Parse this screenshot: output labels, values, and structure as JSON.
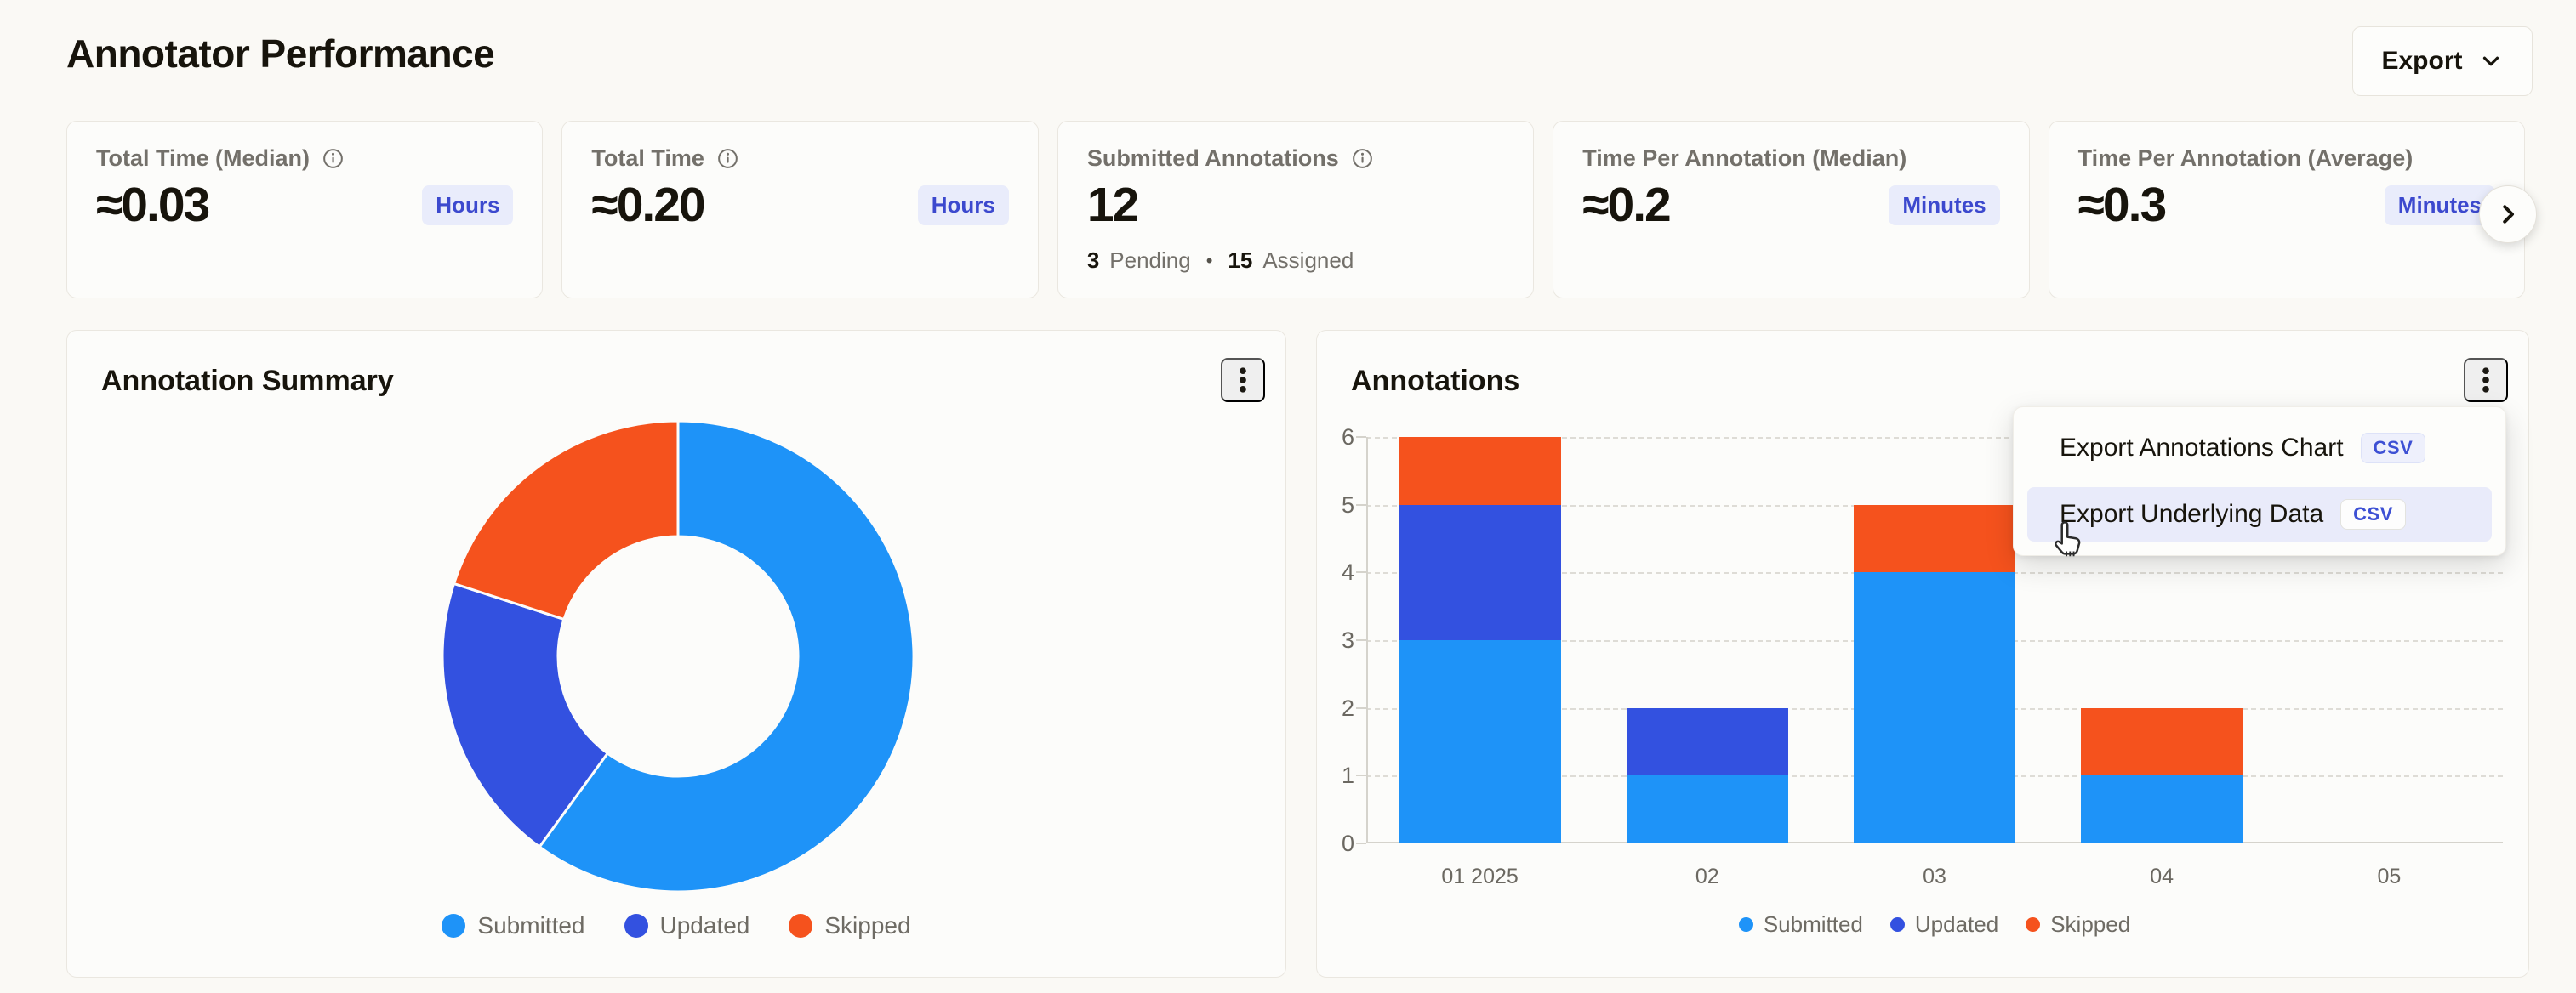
{
  "page": {
    "title": "Annotator Performance",
    "background": "#FAF9F5"
  },
  "header": {
    "export_label": "Export"
  },
  "colors": {
    "submitted": "#1E93F8",
    "updated": "#3351E0",
    "skipped": "#F5521D",
    "badge_bg": "#E9ECFB",
    "badge_text": "#3C49CE",
    "card_bg": "#FCFCFA",
    "page_bg": "#FAF9F5"
  },
  "stat_cards": [
    {
      "label": "Total Time (Median)",
      "info_icon": true,
      "value": "≈0.03",
      "unit": "Hours"
    },
    {
      "label": "Total Time",
      "info_icon": true,
      "value": "≈0.20",
      "unit": "Hours"
    },
    {
      "label": "Submitted Annotations",
      "info_icon": true,
      "value": "12",
      "footnote": {
        "separator": "•",
        "parts": [
          {
            "num": "3",
            "label": "Pending"
          },
          {
            "num": "15",
            "label": "Assigned"
          }
        ]
      }
    },
    {
      "label": "Time Per Annotation (Median)",
      "info_icon": false,
      "value": "≈0.2",
      "unit": "Minutes"
    },
    {
      "label": "Time Per Annotation (Average)",
      "info_icon": false,
      "value": "≈0.3",
      "unit": "Minutes"
    }
  ],
  "donut_panel": {
    "title": "Annotation Summary"
  },
  "bar_panel": {
    "title": "Annotations"
  },
  "context_menu": {
    "items": [
      {
        "label": "Export Annotations Chart",
        "badge": "CSV",
        "highlighted": false
      },
      {
        "label": "Export Underlying Data",
        "badge": "CSV",
        "highlighted": true
      }
    ]
  },
  "chart_data": [
    {
      "type": "pie",
      "donut": true,
      "title": "Annotation Summary",
      "labels": [
        "Submitted",
        "Updated",
        "Skipped"
      ],
      "values": [
        9,
        3,
        3
      ],
      "percentages": [
        60,
        20,
        20
      ],
      "colors": [
        "#1E93F8",
        "#3351E0",
        "#F5521D"
      ],
      "legend_position": "bottom"
    },
    {
      "type": "bar",
      "stacked": true,
      "title": "Annotations",
      "categories": [
        "01 2025",
        "02",
        "03",
        "04",
        "05"
      ],
      "series": [
        {
          "name": "Submitted",
          "color": "#1E93F8",
          "values": [
            3,
            1,
            4,
            1,
            0
          ]
        },
        {
          "name": "Updated",
          "color": "#3351E0",
          "values": [
            2,
            1,
            0,
            0,
            0
          ]
        },
        {
          "name": "Skipped",
          "color": "#F5521D",
          "values": [
            1,
            0,
            1,
            1,
            0
          ]
        }
      ],
      "ylim": [
        0,
        6
      ],
      "yticks": [
        0,
        1,
        2,
        3,
        4,
        5,
        6
      ],
      "grid": "dashed-horizontal",
      "legend_position": "bottom"
    }
  ]
}
